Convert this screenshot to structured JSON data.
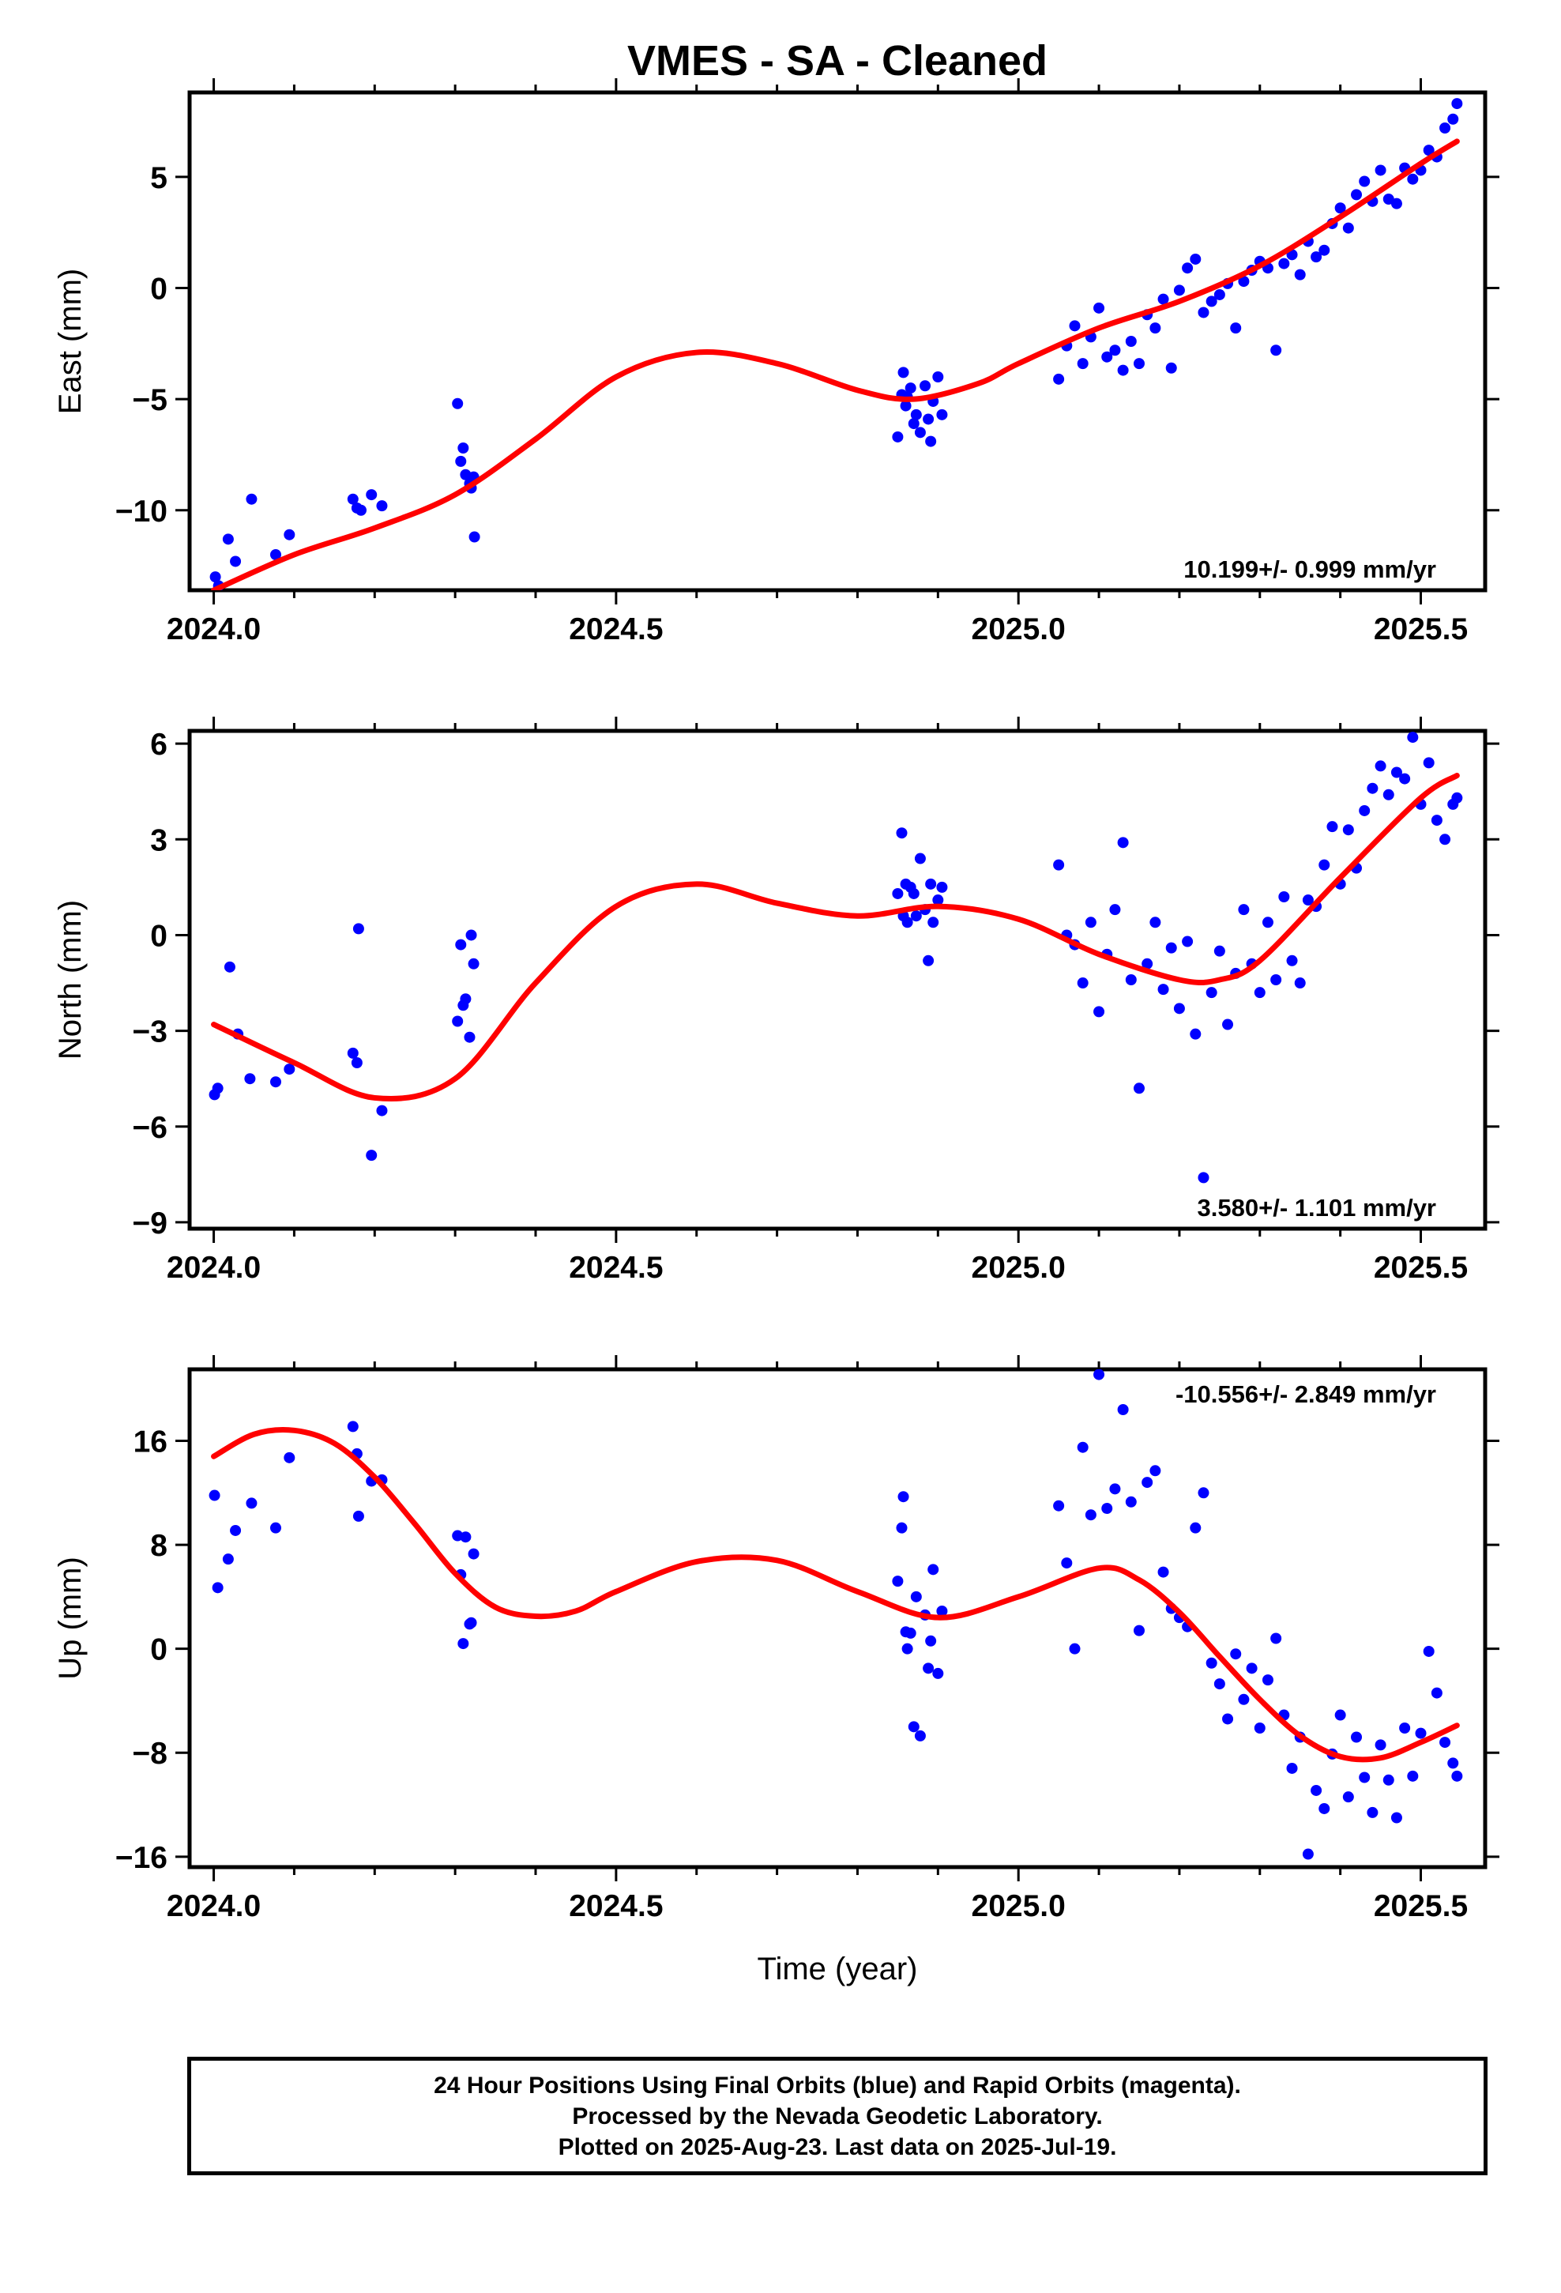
{
  "title": "VMES  - SA - Cleaned",
  "xlabel": "Time (year)",
  "footer": {
    "line1": "24 Hour Positions Using Final Orbits (blue) and Rapid Orbits (magenta).",
    "line2": "Processed by the Nevada Geodetic Laboratory.",
    "line3": "Plotted on 2025-Aug-23. Last data on 2025-Jul-19."
  },
  "colors": {
    "data": "#0000ff",
    "fit": "#ff0000",
    "axis": "#000000"
  },
  "chart_data": [
    {
      "type": "scatter",
      "ylabel": "East (mm)",
      "xlim": [
        2023.97,
        2025.58
      ],
      "ylim": [
        -13.6,
        8.8
      ],
      "xticks": [
        "2024.0",
        "2024.5",
        "2025.0",
        "2025.5"
      ],
      "yticks": [
        "5",
        "0",
        "-5",
        "-10"
      ],
      "rate_label": "10.199+/- 0.999 mm/yr",
      "fit": {
        "name": "",
        "x": [
          2024.0,
          2024.1,
          2024.2,
          2024.3,
          2024.4,
          2024.5,
          2024.6,
          2024.7,
          2024.8,
          2024.87,
          2024.95,
          2025.0,
          2025.1,
          2025.2,
          2025.3,
          2025.4,
          2025.5,
          2025.545
        ],
        "y": [
          -13.6,
          -12.0,
          -10.8,
          -9.3,
          -6.8,
          -4.0,
          -2.9,
          -3.4,
          -4.6,
          -5.0,
          -4.3,
          -3.4,
          -1.8,
          -0.6,
          1.0,
          3.2,
          5.6,
          6.6
        ]
      },
      "series": [
        {
          "name": "",
          "x": [
            2024.002,
            2024.006,
            2024.018,
            2024.027,
            2024.047,
            2024.077,
            2024.094,
            2024.173,
            2024.178,
            2024.183,
            2024.196,
            2024.209,
            2024.303,
            2024.307,
            2024.31,
            2024.313,
            2024.318,
            2024.32,
            2024.323,
            2024.324,
            2024.85,
            2024.855,
            2024.857,
            2024.86,
            2024.862,
            2024.866,
            2024.87,
            2024.873,
            2024.878,
            2024.884,
            2024.888,
            2024.891,
            2024.894,
            2024.9,
            2024.905,
            2025.05,
            2025.06,
            2025.07,
            2025.08,
            2025.09,
            2025.1,
            2025.11,
            2025.12,
            2025.13,
            2025.14,
            2025.15,
            2025.16,
            2025.17,
            2025.18,
            2025.19,
            2025.2,
            2025.21,
            2025.22,
            2025.23,
            2025.24,
            2025.25,
            2025.26,
            2025.27,
            2025.28,
            2025.29,
            2025.3,
            2025.31,
            2025.32,
            2025.33,
            2025.34,
            2025.35,
            2025.36,
            2025.37,
            2025.38,
            2025.39,
            2025.4,
            2025.41,
            2025.42,
            2025.43,
            2025.44,
            2025.45,
            2025.46,
            2025.47,
            2025.48,
            2025.49,
            2025.5,
            2025.51,
            2025.52,
            2025.53,
            2025.54,
            2025.545
          ],
          "y": [
            -13.0,
            -13.4,
            -11.3,
            -12.3,
            -9.5,
            -12.0,
            -11.1,
            -9.5,
            -9.9,
            -10.0,
            -9.3,
            -9.8,
            -5.2,
            -7.8,
            -7.2,
            -8.4,
            -8.8,
            -9.0,
            -8.5,
            -11.2,
            -6.7,
            -4.8,
            -3.8,
            -5.3,
            -4.9,
            -4.5,
            -6.1,
            -5.7,
            -6.5,
            -4.4,
            -5.9,
            -6.9,
            -5.1,
            -4.0,
            -5.7,
            -4.1,
            -2.6,
            -1.7,
            -3.4,
            -2.2,
            -0.9,
            -3.1,
            -2.8,
            -3.7,
            -2.4,
            -3.4,
            -1.2,
            -1.8,
            -0.5,
            -3.6,
            -0.1,
            0.9,
            1.3,
            -1.1,
            -0.6,
            -0.3,
            0.2,
            -1.8,
            0.3,
            0.8,
            1.2,
            0.9,
            -2.8,
            1.1,
            1.5,
            0.6,
            2.1,
            1.4,
            1.7,
            2.9,
            3.6,
            2.7,
            4.2,
            4.8,
            3.9,
            5.3,
            4.0,
            3.8,
            5.4,
            4.9,
            5.3,
            6.2,
            5.9,
            7.2,
            7.6,
            8.3
          ]
        }
      ]
    },
    {
      "type": "scatter",
      "ylabel": "North (mm)",
      "xlim": [
        2023.97,
        2025.58
      ],
      "ylim": [
        -9.2,
        6.4
      ],
      "xticks": [
        "2024.0",
        "2024.5",
        "2025.0",
        "2025.5"
      ],
      "yticks": [
        "6",
        "3",
        "0",
        "-3",
        "-6",
        "-9"
      ],
      "rate_label": "3.580+/- 1.101 mm/yr",
      "fit": {
        "name": "",
        "x": [
          2024.0,
          2024.1,
          2024.2,
          2024.3,
          2024.4,
          2024.5,
          2024.6,
          2024.7,
          2024.8,
          2024.9,
          2025.0,
          2025.1,
          2025.2,
          2025.25,
          2025.3,
          2025.4,
          2025.5,
          2025.545
        ],
        "y": [
          -2.8,
          -4.0,
          -5.1,
          -4.5,
          -1.5,
          0.9,
          1.6,
          1.0,
          0.6,
          0.9,
          0.5,
          -0.6,
          -1.4,
          -1.4,
          -0.8,
          1.8,
          4.3,
          5.0
        ],
        "fitnote": ""
      },
      "series": [
        {
          "name": "",
          "x": [
            2024.001,
            2024.005,
            2024.02,
            2024.03,
            2024.045,
            2024.077,
            2024.094,
            2024.173,
            2024.178,
            2024.18,
            2024.196,
            2024.209,
            2024.303,
            2024.307,
            2024.31,
            2024.313,
            2024.318,
            2024.32,
            2024.323,
            2024.85,
            2024.855,
            2024.857,
            2024.86,
            2024.862,
            2024.866,
            2024.87,
            2024.873,
            2024.878,
            2024.884,
            2024.888,
            2024.891,
            2024.894,
            2024.9,
            2024.905,
            2025.05,
            2025.06,
            2025.07,
            2025.08,
            2025.09,
            2025.1,
            2025.11,
            2025.12,
            2025.13,
            2025.14,
            2025.15,
            2025.16,
            2025.17,
            2025.18,
            2025.19,
            2025.2,
            2025.21,
            2025.22,
            2025.23,
            2025.24,
            2025.25,
            2025.26,
            2025.27,
            2025.28,
            2025.29,
            2025.3,
            2025.31,
            2025.32,
            2025.33,
            2025.34,
            2025.35,
            2025.36,
            2025.37,
            2025.38,
            2025.39,
            2025.4,
            2025.41,
            2025.42,
            2025.43,
            2025.44,
            2025.45,
            2025.46,
            2025.47,
            2025.48,
            2025.49,
            2025.5,
            2025.51,
            2025.52,
            2025.53,
            2025.54,
            2025.545
          ],
          "y": [
            -5.0,
            -4.8,
            -1.0,
            -3.1,
            -4.5,
            -4.6,
            -4.2,
            -3.7,
            -4.0,
            0.2,
            -6.9,
            -5.5,
            -2.7,
            -0.3,
            -2.2,
            -2.0,
            -3.2,
            0.0,
            -0.9,
            1.3,
            3.2,
            0.6,
            1.6,
            0.4,
            1.5,
            1.3,
            0.6,
            2.4,
            0.8,
            -0.8,
            1.6,
            0.4,
            1.1,
            1.5,
            2.2,
            0.0,
            -0.3,
            -1.5,
            0.4,
            -2.4,
            -0.6,
            0.8,
            2.9,
            -1.4,
            -4.8,
            -0.9,
            0.4,
            -1.7,
            -0.4,
            -2.3,
            -0.2,
            -3.1,
            -7.6,
            -1.8,
            -0.5,
            -2.8,
            -1.2,
            0.8,
            -0.9,
            -1.8,
            0.4,
            -1.4,
            1.2,
            -0.8,
            -1.5,
            1.1,
            0.9,
            2.2,
            3.4,
            1.6,
            3.3,
            2.1,
            3.9,
            4.6,
            5.3,
            4.4,
            5.1,
            4.9,
            6.2,
            4.1,
            5.4,
            3.6,
            3.0,
            4.1,
            4.3
          ]
        }
      ]
    },
    {
      "type": "scatter",
      "ylabel": "Up (mm)",
      "xlim": [
        2023.97,
        2025.58
      ],
      "ylim": [
        -16.8,
        21.5
      ],
      "xticks": [
        "2024.0",
        "2024.5",
        "2025.0",
        "2025.5"
      ],
      "yticks": [
        "16",
        "8",
        "0",
        "-8",
        "-16"
      ],
      "rate_label": "-10.556+/- 2.849 mm/yr",
      "fit": {
        "name": "",
        "x": [
          2024.0,
          2024.05,
          2024.1,
          2024.15,
          2024.2,
          2024.25,
          2024.3,
          2024.35,
          2024.4,
          2024.45,
          2024.5,
          2024.6,
          2024.7,
          2024.8,
          2024.9,
          2025.0,
          2025.1,
          2025.15,
          2025.2,
          2025.25,
          2025.3,
          2025.35,
          2025.4,
          2025.45,
          2025.5,
          2025.545
        ],
        "y": [
          14.8,
          16.5,
          16.8,
          15.8,
          13.2,
          9.6,
          5.8,
          3.2,
          2.5,
          2.9,
          4.4,
          6.7,
          6.8,
          4.4,
          2.4,
          4.0,
          6.2,
          5.3,
          2.8,
          -0.6,
          -3.9,
          -6.7,
          -8.3,
          -8.4,
          -7.2,
          -5.9
        ]
      },
      "series": [
        {
          "name": "",
          "x": [
            2024.001,
            2024.005,
            2024.018,
            2024.027,
            2024.047,
            2024.077,
            2024.094,
            2024.173,
            2024.178,
            2024.18,
            2024.196,
            2024.209,
            2024.303,
            2024.307,
            2024.31,
            2024.313,
            2024.318,
            2024.32,
            2024.323,
            2024.85,
            2024.855,
            2024.857,
            2024.86,
            2024.862,
            2024.866,
            2024.87,
            2024.873,
            2024.878,
            2024.884,
            2024.888,
            2024.891,
            2024.894,
            2024.9,
            2024.905,
            2025.05,
            2025.06,
            2025.07,
            2025.08,
            2025.09,
            2025.1,
            2025.11,
            2025.12,
            2025.13,
            2025.14,
            2025.15,
            2025.16,
            2025.17,
            2025.18,
            2025.19,
            2025.2,
            2025.21,
            2025.22,
            2025.23,
            2025.24,
            2025.25,
            2025.26,
            2025.27,
            2025.28,
            2025.29,
            2025.3,
            2025.31,
            2025.32,
            2025.33,
            2025.34,
            2025.35,
            2025.36,
            2025.37,
            2025.38,
            2025.39,
            2025.4,
            2025.41,
            2025.42,
            2025.43,
            2025.44,
            2025.45,
            2025.46,
            2025.47,
            2025.48,
            2025.49,
            2025.5,
            2025.51,
            2025.52,
            2025.53,
            2025.54,
            2025.545
          ],
          "y": [
            11.8,
            4.7,
            6.9,
            9.1,
            11.2,
            9.3,
            14.7,
            17.1,
            15.0,
            10.2,
            12.9,
            13.0,
            8.7,
            5.7,
            0.4,
            8.6,
            1.9,
            2.0,
            7.3,
            5.2,
            9.3,
            11.7,
            1.3,
            0.0,
            1.2,
            -6.0,
            4.0,
            -6.7,
            2.6,
            -1.5,
            0.6,
            6.1,
            -1.9,
            2.9,
            11.0,
            6.6,
            0.0,
            15.5,
            10.3,
            21.1,
            10.8,
            12.3,
            18.4,
            11.3,
            1.4,
            12.8,
            13.7,
            5.9,
            3.1,
            2.4,
            1.7,
            9.3,
            12.0,
            -1.1,
            -2.7,
            -5.4,
            -0.4,
            -3.9,
            -1.5,
            -6.1,
            -2.4,
            0.8,
            -5.1,
            -9.2,
            -6.8,
            -15.8,
            -10.9,
            -12.3,
            -8.1,
            -5.1,
            -11.4,
            -6.8,
            -9.9,
            -12.6,
            -7.4,
            -10.1,
            -13.0,
            -6.1,
            -9.8,
            -6.5,
            -0.2,
            -3.4,
            -7.2,
            -8.8,
            -9.8
          ]
        }
      ]
    }
  ]
}
